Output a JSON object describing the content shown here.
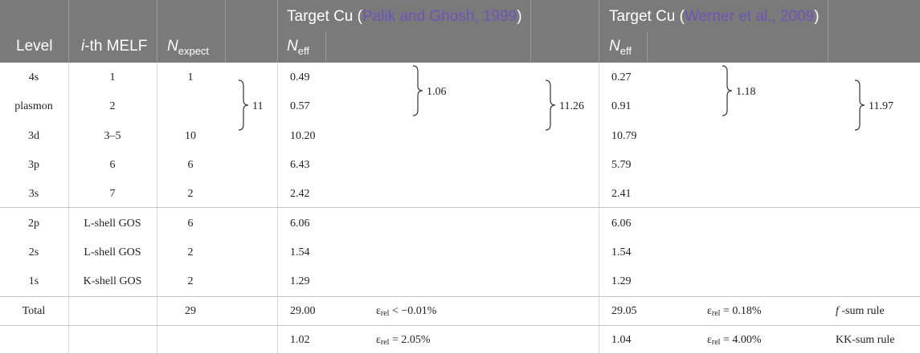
{
  "header": {
    "level": "Level",
    "melf_italic": "i",
    "melf_rest": "-th MELF",
    "n_expect_main": "N",
    "n_expect_sub": "expect",
    "target_palik_prefix": "Target Cu (",
    "target_palik_cite": "Palik and Ghosh, 1999",
    "target_palik_suffix": ")",
    "target_werner_prefix": "Target Cu (",
    "target_werner_cite": "Werner et al., 2009",
    "target_werner_suffix": ")",
    "n_eff_main": "N",
    "n_eff_sub": "eff"
  },
  "rows": [
    {
      "level": "4s",
      "melf": "1",
      "nexpect": "1",
      "palik": "0.49",
      "werner": "0.27"
    },
    {
      "level": "plasmon",
      "melf": "2",
      "nexpect": "",
      "palik": "0.57",
      "werner": "0.91"
    },
    {
      "level": "3d",
      "melf": "3–5",
      "nexpect": "10",
      "palik": "10.20",
      "werner": "10.79"
    },
    {
      "level": "3p",
      "melf": "6",
      "nexpect": "6",
      "palik": "6.43",
      "werner": "5.79"
    },
    {
      "level": "3s",
      "melf": "7",
      "nexpect": "2",
      "palik": "2.42",
      "werner": "2.41"
    },
    {
      "level": "2p",
      "melf": "L-shell GOS",
      "nexpect": "6",
      "palik": "6.06",
      "werner": "6.06"
    },
    {
      "level": "2s",
      "melf": "L-shell GOS",
      "nexpect": "2",
      "palik": "1.54",
      "werner": "1.54"
    },
    {
      "level": "1s",
      "melf": "K-shell GOS",
      "nexpect": "2",
      "palik": "1.29",
      "werner": "1.29"
    }
  ],
  "braces": {
    "nexpect_group": "11",
    "palik_pair": "1.06",
    "palik_group": "11.26",
    "werner_pair": "1.18",
    "werner_group": "11.97"
  },
  "total": {
    "label": "Total",
    "nexpect": "29",
    "palik": "29.00",
    "palik_eps_symbol": "ε",
    "palik_eps_sub": "rel",
    "palik_eps_value": " < −0.01%",
    "werner": "29.05",
    "werner_eps_symbol": "ε",
    "werner_eps_sub": "rel",
    "werner_eps_value": " = 0.18%",
    "rule_f": "f",
    "rule_rest": " -sum rule"
  },
  "kk": {
    "palik": "1.02",
    "palik_eps_symbol": "ε",
    "palik_eps_sub": "rel",
    "palik_eps_value": " = 2.05%",
    "werner": "1.04",
    "werner_eps_symbol": "ε",
    "werner_eps_sub": "rel",
    "werner_eps_value": " = 4.00%",
    "rule": "KK-sum rule"
  },
  "colors": {
    "header_bg": "#7a7a7a",
    "header_text": "#ffffff",
    "citation": "#6b56b8"
  }
}
